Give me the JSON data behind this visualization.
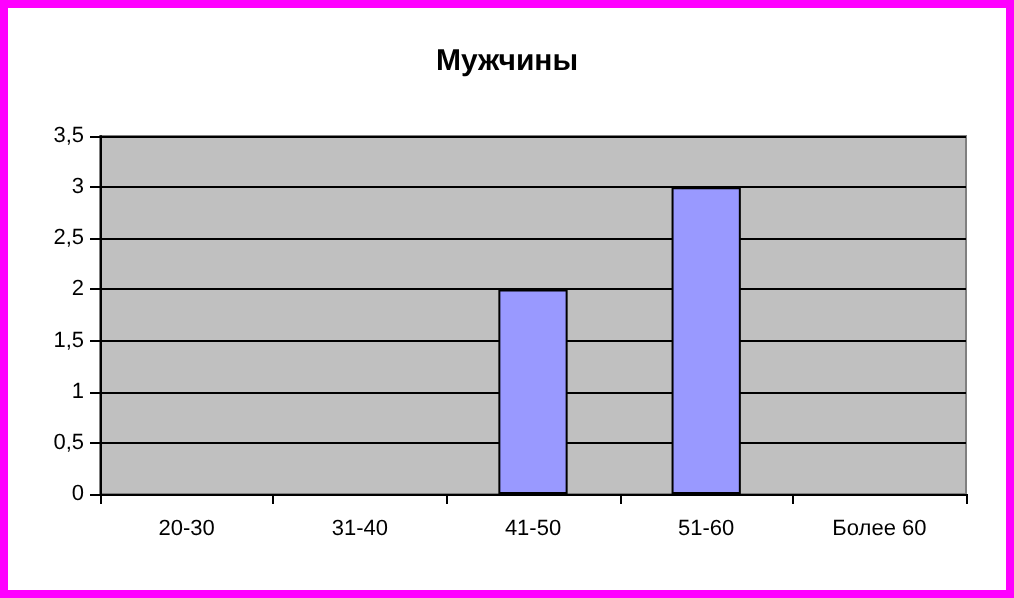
{
  "chart_data": {
    "type": "bar",
    "title": "Мужчины",
    "categories": [
      "20-30",
      "31-40",
      "41-50",
      "51-60",
      "Более 60"
    ],
    "values": [
      0,
      0,
      2,
      3,
      0
    ],
    "color": "#9999ff",
    "ylim": [
      0,
      3.5
    ],
    "yticks": [
      0,
      {
        "value": 0.5,
        "label": "0,5"
      },
      1,
      {
        "value": 1.5,
        "label": "1,5"
      },
      2,
      {
        "value": 2.5,
        "label": "2,5"
      },
      3,
      {
        "value": 3.5,
        "label": "3,5"
      }
    ],
    "grid": "y"
  }
}
